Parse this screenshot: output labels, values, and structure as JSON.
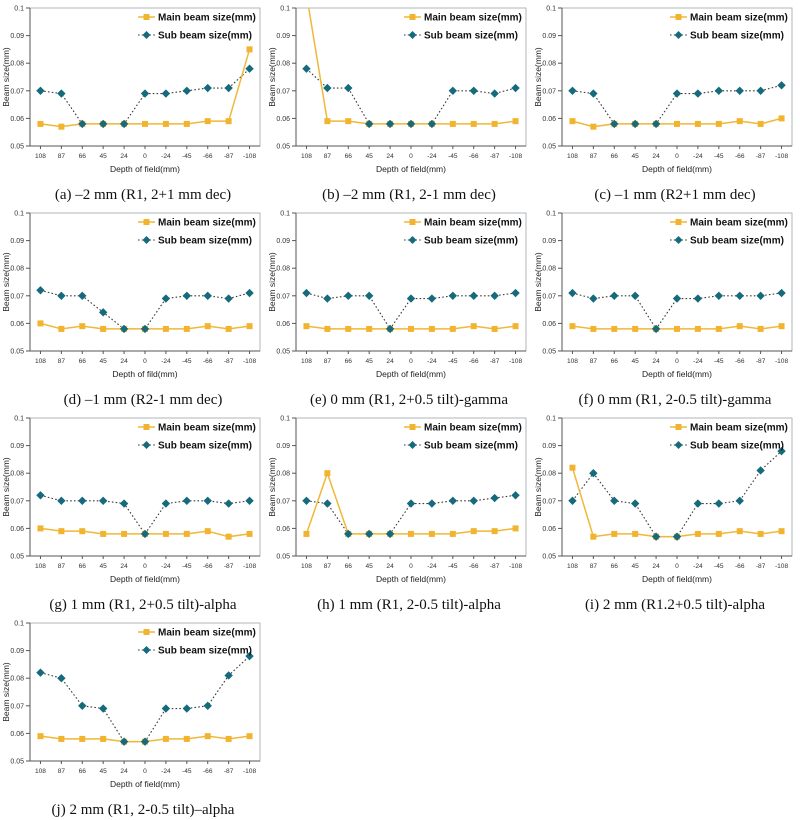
{
  "figure": {
    "legend": {
      "main_label": "Main beam size(mm)",
      "sub_label": "Sub beam size(mm)"
    },
    "colors": {
      "main_marker": "#F2B32E",
      "main_line": "#EFB838",
      "sub_marker": "#156A7C",
      "sub_line": "#3A3A3A",
      "axis": "#555555",
      "frame": "#9FA6AC",
      "tick_text": "#333333",
      "label_text": "#222222"
    }
  },
  "chart_data": [
    {
      "type": "line",
      "id": "a",
      "caption": "(a) –2 mm (R1, 2+1 mm dec)",
      "xlabel": "Depth of field(mm)",
      "ylabel": "Beam size(mm)",
      "ylim": [
        0.05,
        0.1
      ],
      "yticks": [
        "0.05",
        "0.06",
        "0.07",
        "0.08",
        "0.09",
        "0.1"
      ],
      "categories": [
        "108",
        "87",
        "66",
        "45",
        "24",
        "0",
        "-24",
        "-45",
        "-66",
        "-87",
        "-108"
      ],
      "series": [
        {
          "name": "Main beam size(mm)",
          "values": [
            0.058,
            0.057,
            0.058,
            0.058,
            0.058,
            0.058,
            0.058,
            0.058,
            0.059,
            0.059,
            0.085
          ]
        },
        {
          "name": "Sub beam size(mm)",
          "values": [
            0.07,
            0.069,
            0.058,
            0.058,
            0.058,
            0.069,
            0.069,
            0.07,
            0.071,
            0.071,
            0.078
          ]
        }
      ]
    },
    {
      "type": "line",
      "id": "b",
      "caption": "(b) –2 mm (R1, 2-1 mm dec)",
      "xlabel": "Depth of field(mm)",
      "ylabel": "Beam size(mm)",
      "ylim": [
        0.05,
        0.1
      ],
      "yticks": [
        "0.05",
        "0.06",
        "0.07",
        "0.08",
        "0.09",
        "0.1"
      ],
      "categories": [
        "108",
        "87",
        "66",
        "45",
        "24",
        "0",
        "-24",
        "-45",
        "-66",
        "-87",
        "-108"
      ],
      "series": [
        {
          "name": "Main beam size(mm)",
          "values": [
            0.105,
            0.059,
            0.059,
            0.058,
            0.058,
            0.058,
            0.058,
            0.058,
            0.058,
            0.058,
            0.059
          ]
        },
        {
          "name": "Sub beam size(mm)",
          "values": [
            0.078,
            0.071,
            0.071,
            0.058,
            0.058,
            0.058,
            0.058,
            0.07,
            0.07,
            0.069,
            0.071
          ]
        }
      ]
    },
    {
      "type": "line",
      "id": "c",
      "caption": "(c) –1 mm (R2+1 mm dec)",
      "xlabel": "Depth of field(mm)",
      "ylabel": "Beam size(mm)",
      "ylim": [
        0.05,
        0.1
      ],
      "yticks": [
        "0.05",
        "0.06",
        "0.07",
        "0.08",
        "0.09",
        "0.1"
      ],
      "categories": [
        "108",
        "87",
        "66",
        "45",
        "24",
        "0",
        "-24",
        "-45",
        "-66",
        "-87",
        "-108"
      ],
      "series": [
        {
          "name": "Main beam size(mm)",
          "values": [
            0.059,
            0.057,
            0.058,
            0.058,
            0.058,
            0.058,
            0.058,
            0.058,
            0.059,
            0.058,
            0.06
          ]
        },
        {
          "name": "Sub beam size(mm)",
          "values": [
            0.07,
            0.069,
            0.058,
            0.058,
            0.058,
            0.069,
            0.069,
            0.07,
            0.07,
            0.07,
            0.072
          ]
        }
      ]
    },
    {
      "type": "line",
      "id": "d",
      "caption": "(d) –1 mm (R2-1 mm dec)",
      "xlabel": "Depth of fild(mm)",
      "ylabel": "Beam size(mm)",
      "ylim": [
        0.05,
        0.1
      ],
      "yticks": [
        "0.05",
        "0.06",
        "0.07",
        "0.08",
        "0.09",
        "0.1"
      ],
      "categories": [
        "108",
        "87",
        "66",
        "45",
        "24",
        "0",
        "-24",
        "-45",
        "-66",
        "-87",
        "-108"
      ],
      "series": [
        {
          "name": "Main beam size(mm)",
          "values": [
            0.06,
            0.058,
            0.059,
            0.058,
            0.058,
            0.058,
            0.058,
            0.058,
            0.059,
            0.058,
            0.059
          ]
        },
        {
          "name": "Sub beam size(mm)",
          "values": [
            0.072,
            0.07,
            0.07,
            0.064,
            0.058,
            0.058,
            0.069,
            0.07,
            0.07,
            0.069,
            0.071
          ]
        }
      ]
    },
    {
      "type": "line",
      "id": "e",
      "caption": "(e) 0 mm (R1, 2+0.5 tilt)-gamma",
      "xlabel": "Depth of field(mm)",
      "ylabel": "Beam size(mm)",
      "ylim": [
        0.05,
        0.1
      ],
      "yticks": [
        "0.05",
        "0.06",
        "0.07",
        "0.08",
        "0.09",
        "0.1"
      ],
      "categories": [
        "108",
        "87",
        "66",
        "45",
        "24",
        "0",
        "-24",
        "-45",
        "-66",
        "-87",
        "-108"
      ],
      "series": [
        {
          "name": "Main beam size(mm)",
          "values": [
            0.059,
            0.058,
            0.058,
            0.058,
            0.058,
            0.058,
            0.058,
            0.058,
            0.059,
            0.058,
            0.059
          ]
        },
        {
          "name": "Sub beam size(mm)",
          "values": [
            0.071,
            0.069,
            0.07,
            0.07,
            0.058,
            0.069,
            0.069,
            0.07,
            0.07,
            0.07,
            0.071
          ]
        }
      ]
    },
    {
      "type": "line",
      "id": "f",
      "caption": "(f) 0 mm (R1, 2-0.5 tilt)-gamma",
      "xlabel": "Depth of field(mm)",
      "ylabel": "Beam size(mm)",
      "ylim": [
        0.05,
        0.1
      ],
      "yticks": [
        "0.05",
        "0.06",
        "0.07",
        "0.08",
        "0.09",
        "0.1"
      ],
      "categories": [
        "108",
        "87",
        "66",
        "45",
        "24",
        "0",
        "-24",
        "-45",
        "-66",
        "-87",
        "-108"
      ],
      "series": [
        {
          "name": "Main beam size(mm)",
          "values": [
            0.059,
            0.058,
            0.058,
            0.058,
            0.058,
            0.058,
            0.058,
            0.058,
            0.059,
            0.058,
            0.059
          ]
        },
        {
          "name": "Sub beam size(mm)",
          "values": [
            0.071,
            0.069,
            0.07,
            0.07,
            0.058,
            0.069,
            0.069,
            0.07,
            0.07,
            0.07,
            0.071
          ]
        }
      ]
    },
    {
      "type": "line",
      "id": "g",
      "caption": "(g) 1 mm (R1, 2+0.5 tilt)-alpha",
      "xlabel": "Depth of field(mm)",
      "ylabel": "Beam size(mm)",
      "ylim": [
        0.05,
        0.1
      ],
      "yticks": [
        "0.05",
        "0.06",
        "0.07",
        "0.08",
        "0.09",
        "0.1"
      ],
      "categories": [
        "108",
        "87",
        "66",
        "45",
        "24",
        "0",
        "-24",
        "-45",
        "-66",
        "-87",
        "-108"
      ],
      "series": [
        {
          "name": "Main beam size(mm)",
          "values": [
            0.06,
            0.059,
            0.059,
            0.058,
            0.058,
            0.058,
            0.058,
            0.058,
            0.059,
            0.057,
            0.058
          ]
        },
        {
          "name": "Sub beam size(mm)",
          "values": [
            0.072,
            0.07,
            0.07,
            0.07,
            0.069,
            0.058,
            0.069,
            0.07,
            0.07,
            0.069,
            0.07
          ]
        }
      ]
    },
    {
      "type": "line",
      "id": "h",
      "caption": "(h) 1 mm (R1, 2-0.5 tilt)-alpha",
      "xlabel": "Depth of field(mm)",
      "ylabel": "Beam size(mm)",
      "ylim": [
        0.05,
        0.1
      ],
      "yticks": [
        "0.05",
        "0.06",
        "0.07",
        "0.08",
        "0.09",
        "0.1"
      ],
      "categories": [
        "108",
        "87",
        "66",
        "45",
        "24",
        "0",
        "-24",
        "-45",
        "-66",
        "-87",
        "-108"
      ],
      "series": [
        {
          "name": "Main beam size(mm)",
          "values": [
            0.058,
            0.08,
            0.058,
            0.058,
            0.058,
            0.058,
            0.058,
            0.058,
            0.059,
            0.059,
            0.06
          ]
        },
        {
          "name": "Sub beam size(mm)",
          "values": [
            0.07,
            0.069,
            0.058,
            0.058,
            0.058,
            0.069,
            0.069,
            0.07,
            0.07,
            0.071,
            0.072
          ]
        }
      ]
    },
    {
      "type": "line",
      "id": "i",
      "caption": "(i) 2 mm (R1.2+0.5 tilt)-alpha",
      "xlabel": "Depth of field(mm)",
      "ylabel": "Beam size(mm)",
      "ylim": [
        0.05,
        0.1
      ],
      "yticks": [
        "0.05",
        "0.06",
        "0.07",
        "0.08",
        "0.09",
        "0.1"
      ],
      "categories": [
        "108",
        "87",
        "66",
        "45",
        "24",
        "0",
        "-24",
        "-45",
        "-66",
        "-87",
        "-108"
      ],
      "series": [
        {
          "name": "Main beam size(mm)",
          "values": [
            0.082,
            0.057,
            0.058,
            0.058,
            0.057,
            0.057,
            0.058,
            0.058,
            0.059,
            0.058,
            0.059
          ]
        },
        {
          "name": "Sub beam size(mm)",
          "values": [
            0.07,
            0.08,
            0.07,
            0.069,
            0.057,
            0.057,
            0.069,
            0.069,
            0.07,
            0.081,
            0.088
          ]
        }
      ]
    },
    {
      "type": "line",
      "id": "j",
      "caption": "(j) 2 mm (R1, 2-0.5 tilt)–alpha",
      "xlabel": "Depth of field(mm)",
      "ylabel": "Beam size(mm)",
      "ylim": [
        0.05,
        0.1
      ],
      "yticks": [
        "0.05",
        "0.06",
        "0.07",
        "0.08",
        "0.09",
        "0.1"
      ],
      "categories": [
        "108",
        "87",
        "66",
        "45",
        "24",
        "0",
        "-24",
        "-45",
        "-66",
        "-87",
        "-108"
      ],
      "series": [
        {
          "name": "Main beam size(mm)",
          "values": [
            0.059,
            0.058,
            0.058,
            0.058,
            0.057,
            0.057,
            0.058,
            0.058,
            0.059,
            0.058,
            0.059
          ]
        },
        {
          "name": "Sub beam size(mm)",
          "values": [
            0.082,
            0.08,
            0.07,
            0.069,
            0.057,
            0.057,
            0.069,
            0.069,
            0.07,
            0.081,
            0.088
          ]
        }
      ]
    }
  ]
}
